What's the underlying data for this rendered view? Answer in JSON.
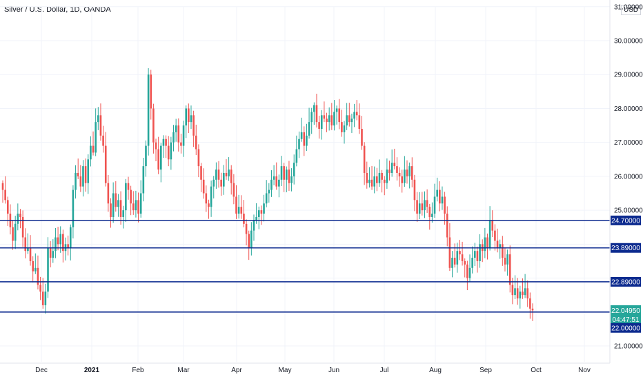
{
  "header": {
    "title": "Silver / U.S. Dollar, 1D, OANDA",
    "unit": "USD"
  },
  "colors": {
    "up": "#26a69a",
    "down": "#ef5350",
    "level_line": "#0d2b8f",
    "level_tag_bg": "#0d2b8f",
    "last_price_bg": "#26a69a",
    "grid": "#f0f3fa"
  },
  "chart_data": {
    "type": "candlestick",
    "symbol": "Silver / U.S. Dollar",
    "interval": "1D",
    "source": "OANDA",
    "ylim": [
      20.5,
      31.0
    ],
    "y_ticks": [
      "21.00000",
      "22.00000",
      "22.89000",
      "23.89000",
      "24.70000",
      "25.00000",
      "26.00000",
      "27.00000",
      "28.00000",
      "29.00000",
      "30.00000",
      "31.00000"
    ],
    "x_labels": [
      "Dec",
      "2021",
      "Feb",
      "Mar",
      "Apr",
      "May",
      "Jun",
      "Jul",
      "Aug",
      "Sep",
      "Oct",
      "Nov"
    ],
    "horizontal_levels": [
      24.7,
      23.89,
      22.89,
      22.0
    ],
    "level_labels": [
      "24.70000",
      "23.89000",
      "22.89000",
      "22.00000"
    ],
    "last_price": "22.04950",
    "countdown": "04:47:51",
    "closes": [
      25.6,
      25.3,
      24.9,
      24.5,
      24.1,
      24.6,
      24.9,
      24.8,
      24.2,
      23.8,
      23.9,
      23.5,
      23.2,
      23.3,
      22.8,
      22.6,
      22.2,
      22.6,
      23.9,
      23.6,
      23.8,
      24.2,
      24.0,
      24.3,
      23.8,
      24.0,
      23.9,
      24.5,
      25.6,
      26.1,
      26.0,
      25.7,
      26.3,
      25.8,
      26.5,
      26.9,
      26.7,
      27.6,
      27.8,
      27.2,
      26.9,
      25.8,
      25.2,
      24.8,
      25.5,
      25.1,
      25.3,
      24.8,
      25.0,
      25.8,
      25.6,
      25.2,
      25.0,
      25.3,
      24.9,
      25.5,
      26.3,
      26.9,
      29.0,
      28.0,
      27.0,
      26.8,
      26.2,
      26.9,
      27.1,
      26.9,
      26.5,
      27.0,
      27.3,
      27.5,
      27.0,
      26.9,
      27.5,
      28.0,
      27.6,
      27.8,
      27.2,
      26.8,
      26.3,
      25.9,
      25.5,
      25.2,
      25.1,
      25.7,
      25.9,
      26.2,
      25.9,
      25.7,
      26.1,
      26.0,
      26.2,
      25.8,
      25.4,
      24.9,
      25.1,
      24.9,
      24.6,
      24.3,
      23.9,
      24.4,
      24.7,
      24.8,
      25.0,
      24.9,
      25.2,
      25.5,
      25.6,
      25.9,
      26.0,
      25.7,
      25.9,
      26.3,
      25.9,
      26.2,
      25.8,
      26.0,
      26.4,
      26.8,
      27.1,
      27.3,
      26.9,
      27.2,
      27.6,
      27.9,
      28.1,
      27.6,
      27.4,
      27.8,
      27.7,
      27.6,
      27.8,
      27.5,
      27.9,
      28.0,
      27.6,
      27.3,
      27.5,
      27.8,
      27.6,
      27.7,
      27.9,
      27.8,
      27.4,
      26.9,
      26.1,
      25.8,
      25.9,
      25.7,
      26.0,
      25.8,
      26.1,
      25.9,
      25.8,
      26.2,
      26.1,
      26.4,
      26.3,
      26.1,
      26.0,
      25.8,
      26.2,
      26.0,
      26.3,
      25.9,
      25.3,
      24.9,
      25.2,
      25.0,
      25.3,
      25.1,
      24.8,
      24.9,
      25.4,
      25.6,
      25.2,
      25.4,
      24.9,
      24.2,
      23.3,
      23.6,
      23.4,
      23.8,
      23.7,
      23.5,
      23.4,
      23.0,
      23.3,
      23.6,
      23.8,
      23.5,
      24.0,
      23.8,
      24.2,
      23.9,
      24.7,
      24.4,
      24.1,
      23.9,
      24.0,
      23.6,
      23.4,
      23.7,
      22.8,
      22.5,
      22.7,
      22.4,
      22.6,
      22.5,
      22.7,
      22.4,
      22.1,
      22.05
    ]
  }
}
